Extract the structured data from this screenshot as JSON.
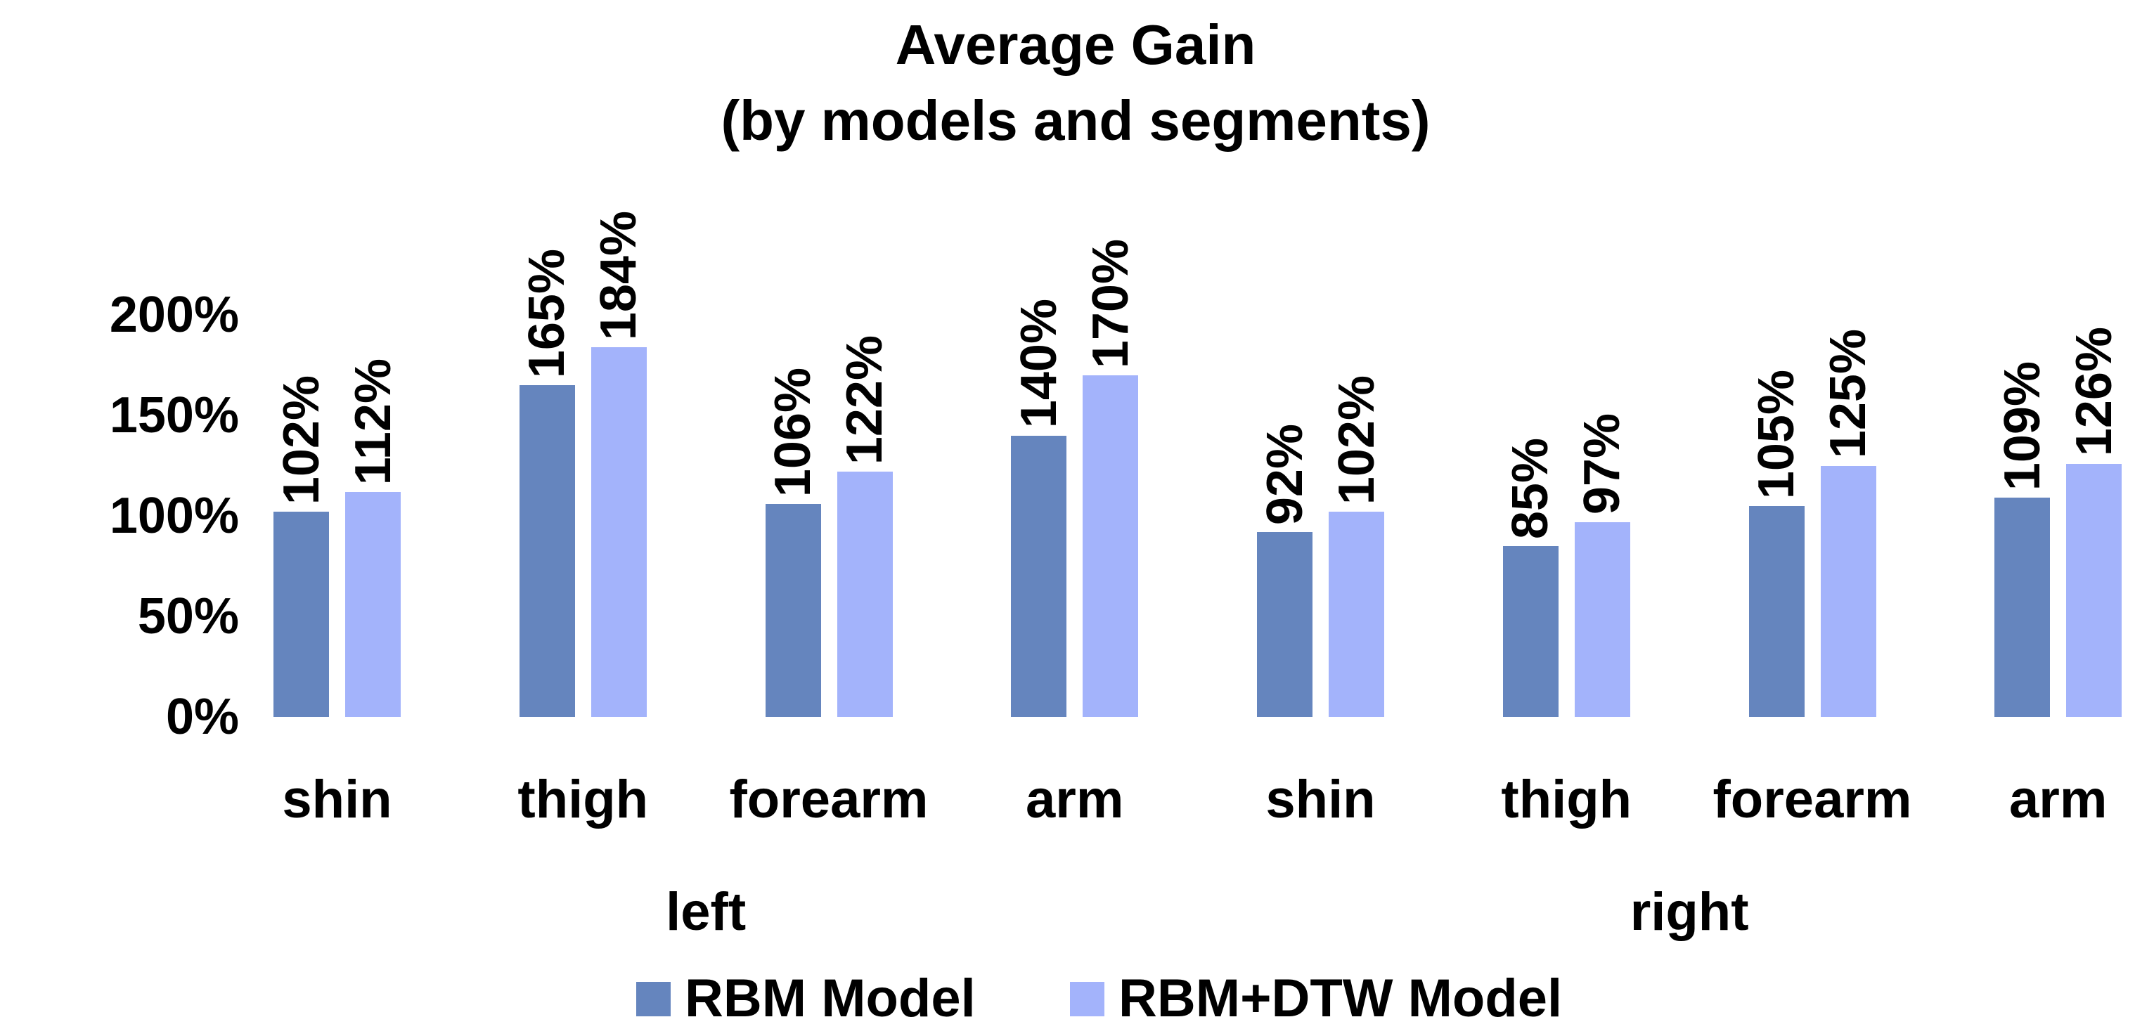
{
  "page": {
    "background": "#ffffff"
  },
  "chart_data": {
    "type": "bar",
    "title": "Average Gain",
    "subtitle": "(by models and segments)",
    "categories": [
      "shin",
      "thigh",
      "forearm",
      "arm",
      "shin",
      "thigh",
      "forearm",
      "arm"
    ],
    "group_labels": [
      {
        "label": "left",
        "groups": [
          0,
          1,
          2,
          3
        ]
      },
      {
        "label": "right",
        "groups": [
          4,
          5,
          6,
          7
        ]
      }
    ],
    "series": [
      {
        "name": "RBM Model",
        "color": "#6585BE",
        "values": [
          102,
          165,
          106,
          140,
          92,
          85,
          105,
          109
        ]
      },
      {
        "name": "RBM+DTW Model",
        "color": "#A3B3FB",
        "values": [
          112,
          184,
          122,
          170,
          102,
          97,
          125,
          126
        ]
      }
    ],
    "data_labels": {
      "show": true,
      "suffix": "%",
      "rotation": -90
    },
    "y_axis": {
      "ticks": [
        0,
        50,
        100,
        150,
        200
      ],
      "suffix": "%",
      "min": 0,
      "max": 200
    },
    "legend": {
      "position": "bottom"
    },
    "grid": false,
    "text_color": "#000000"
  }
}
